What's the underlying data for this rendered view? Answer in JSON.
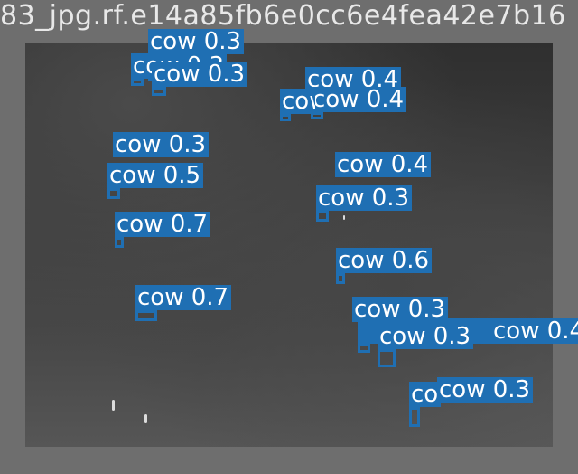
{
  "image": {
    "filename_text": "83_jpg.rf.e14a85fb6e0cc6e4fea42e7b16"
  },
  "colors": {
    "label_bg": "#1f6fb3",
    "label_text": "#ffffff",
    "frame": "#6e6e6e"
  },
  "detections": [
    {
      "label": "cow",
      "score": "0.3",
      "text": "cow 0.3"
    },
    {
      "label": "cow",
      "score": "0.3",
      "text": "cow 0.3"
    },
    {
      "label": "cow",
      "score": "0.3",
      "text": "cow 0.3"
    },
    {
      "label": "cow",
      "score": "0.4",
      "text": "cow 0.4"
    },
    {
      "label": "cow",
      "score": "0.4",
      "text": "cow 0.4"
    },
    {
      "label": "cow",
      "score": "0.3",
      "text": "cow 0.3"
    },
    {
      "label": "cow",
      "score": "0.5",
      "text": "cow 0.5"
    },
    {
      "label": "cow",
      "score": "0.4",
      "text": "cow 0.4"
    },
    {
      "label": "cow",
      "score": "0.3",
      "text": "cow 0.3"
    },
    {
      "label": "cow",
      "score": "0.7",
      "text": "cow 0.7"
    },
    {
      "label": "cow",
      "score": "0.6",
      "text": "cow 0.6"
    },
    {
      "label": "cow",
      "score": "0.7",
      "text": "cow 0.7"
    },
    {
      "label": "cow",
      "score": "0.3",
      "text": "cow 0.3"
    },
    {
      "label": "cow",
      "score": "0.4",
      "text": "cow 0.4"
    },
    {
      "label": "cow",
      "score": "0.3",
      "text": "cow 0.3"
    },
    {
      "label": "cow",
      "score": "0.3",
      "text": "cow 0.3"
    },
    {
      "label": "cow",
      "score": "0.3",
      "text": "cow 0.3"
    }
  ]
}
